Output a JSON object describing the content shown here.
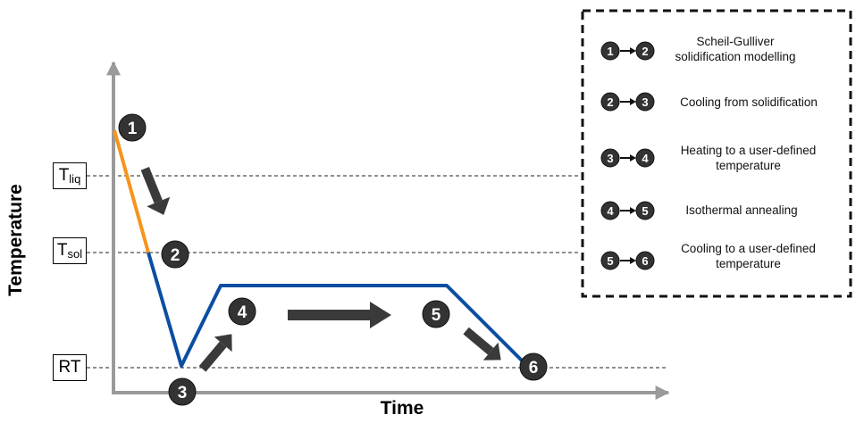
{
  "axes": {
    "x_title": "Time",
    "y_title": "Temperature"
  },
  "temperature_levels": [
    {
      "id": "liq",
      "main": "T",
      "sub": "liq"
    },
    {
      "id": "sol",
      "main": "T",
      "sub": "sol"
    },
    {
      "id": "rt",
      "main": "RT",
      "sub": ""
    }
  ],
  "points": [
    "1",
    "2",
    "3",
    "4",
    "5",
    "6"
  ],
  "colors": {
    "solidification_segment": "#f7941d",
    "process_line": "#0b4ea2",
    "marker": "#333333",
    "arrow": "#3a3a3a"
  },
  "legend": {
    "items": [
      {
        "from": "1",
        "to": "2",
        "text": "Scheil-Gulliver solidification modelling"
      },
      {
        "from": "2",
        "to": "3",
        "text": "Cooling from solidification"
      },
      {
        "from": "3",
        "to": "4",
        "text": "Heating to a user-defined temperature"
      },
      {
        "from": "4",
        "to": "5",
        "text": "Isothermal annealing"
      },
      {
        "from": "5",
        "to": "6",
        "text": "Cooling to a user-defined temperature"
      }
    ]
  }
}
